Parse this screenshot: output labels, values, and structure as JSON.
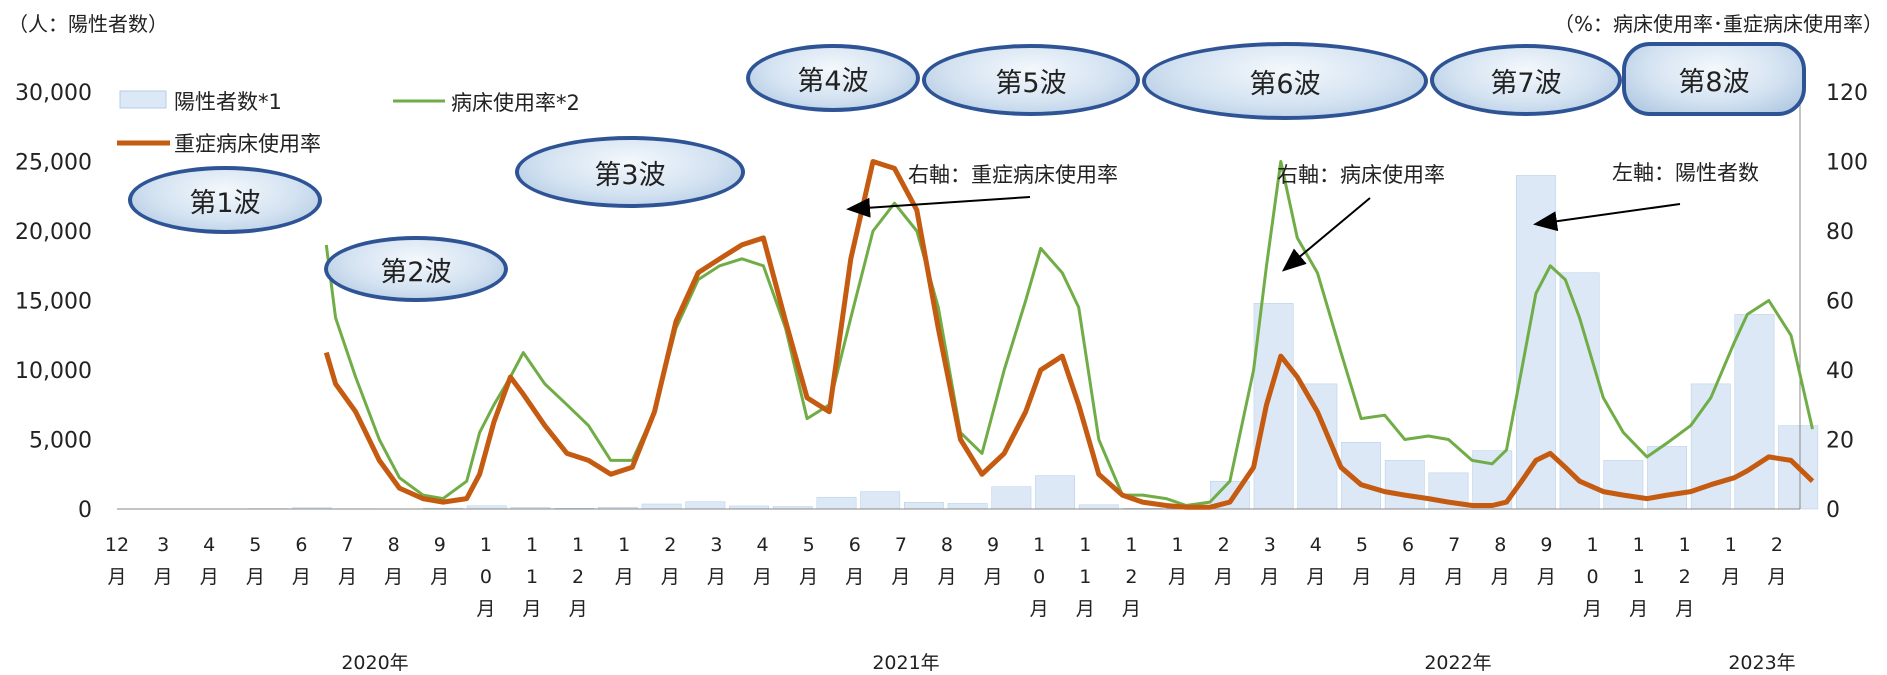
{
  "axes": {
    "left_unit": "（人：陽性者数）",
    "right_unit": "（%：病床使用率･重症病床使用率）"
  },
  "waves": [
    "第1波",
    "第2波",
    "第3波",
    "第4波",
    "第5波",
    "第6波",
    "第7波",
    "第8波"
  ],
  "chart_data": {
    "type": "line",
    "title": "",
    "x_unit": "month",
    "x_range": [
      "2019-12",
      "2023-02"
    ],
    "x_months": [
      "12\n月",
      "3\n月",
      "4\n月",
      "5\n月",
      "6\n月",
      "7\n月",
      "8\n月",
      "9\n月",
      "1\n0\n月",
      "1\n1\n月",
      "1\n2\n月",
      "1\n月",
      "2\n月",
      "3\n月",
      "4\n月",
      "5\n月",
      "6\n月",
      "7\n月",
      "8\n月",
      "9\n月",
      "1\n0\n月",
      "1\n1\n月",
      "1\n2\n月",
      "1\n月",
      "2\n月",
      "3\n月",
      "4\n月",
      "5\n月",
      "6\n月",
      "7\n月",
      "8\n月",
      "9\n月",
      "1\n0\n月",
      "1\n1\n月",
      "1\n2\n月",
      "1\n月",
      "2\n月"
    ],
    "year_labels": [
      "2020年",
      "2021年",
      "2022年",
      "2023年"
    ],
    "y_left": {
      "label": "（人：陽性者数）",
      "range": [
        0,
        30000
      ],
      "ticks": [
        "0",
        "5,000",
        "10,000",
        "15,000",
        "20,000",
        "25,000",
        "30,000"
      ]
    },
    "y_right": {
      "label": "（%：病床使用率･重症病床使用率）",
      "range": [
        0,
        120
      ],
      "ticks": [
        "0",
        "20",
        "40",
        "60",
        "80",
        "100",
        "120"
      ]
    },
    "legend": [
      "陽性者数*1",
      "病床使用率*2",
      "重症病床使用率"
    ],
    "legend_position": "top-left",
    "series": [
      {
        "name": "陽性者数*1",
        "axis": "left",
        "kind": "bar",
        "color": "#dce8f5",
        "x": [
          "2020-03",
          "2020-04",
          "2020-05",
          "2020-06",
          "2020-07",
          "2020-08",
          "2020-09",
          "2020-10",
          "2020-11",
          "2020-12",
          "2021-01",
          "2021-02",
          "2021-03",
          "2021-04",
          "2021-05",
          "2021-06",
          "2021-07",
          "2021-08",
          "2021-09",
          "2021-10",
          "2021-11",
          "2021-12",
          "2022-01",
          "2022-02",
          "2022-03",
          "2022-04",
          "2022-05",
          "2022-06",
          "2022-07",
          "2022-08",
          "2022-09",
          "2022-10",
          "2022-11",
          "2022-12",
          "2023-01",
          "2023-02"
        ],
        "values": [
          30,
          90,
          20,
          10,
          60,
          230,
          110,
          50,
          130,
          360,
          520,
          220,
          180,
          850,
          1250,
          480,
          400,
          1600,
          2400,
          300,
          50,
          60,
          2000,
          14800,
          9000,
          4800,
          3500,
          2600,
          4200,
          24000,
          17000,
          3500,
          4500,
          9000,
          14000,
          6000
        ]
      },
      {
        "name": "病床使用率*2",
        "axis": "right",
        "kind": "line",
        "color": "#70ad47",
        "x": [
          "2020-04-25",
          "2020-05-01",
          "2020-05-15",
          "2020-06-01",
          "2020-06-15",
          "2020-07-01",
          "2020-07-15",
          "2020-08-01",
          "2020-08-10",
          "2020-08-20",
          "2020-09-01",
          "2020-09-10",
          "2020-09-25",
          "2020-10-10",
          "2020-10-25",
          "2020-11-10",
          "2020-11-25",
          "2020-12-10",
          "2020-12-25",
          "2021-01-10",
          "2021-01-25",
          "2021-02-10",
          "2021-02-25",
          "2021-03-10",
          "2021-03-25",
          "2021-04-10",
          "2021-04-25",
          "2021-05-10",
          "2021-05-25",
          "2021-06-10",
          "2021-06-25",
          "2021-07-10",
          "2021-07-25",
          "2021-08-10",
          "2021-08-25",
          "2021-09-05",
          "2021-09-20",
          "2021-10-01",
          "2021-10-15",
          "2021-11-01",
          "2021-11-15",
          "2021-12-01",
          "2021-12-15",
          "2022-01-01",
          "2022-01-15",
          "2022-02-01",
          "2022-02-10",
          "2022-02-20",
          "2022-03-01",
          "2022-03-15",
          "2022-04-01",
          "2022-04-15",
          "2022-05-01",
          "2022-05-15",
          "2022-06-01",
          "2022-06-15",
          "2022-07-01",
          "2022-07-15",
          "2022-07-25",
          "2022-08-05",
          "2022-08-15",
          "2022-08-25",
          "2022-09-05",
          "2022-09-15",
          "2022-10-01",
          "2022-10-15",
          "2022-11-01",
          "2022-11-15",
          "2022-12-01",
          "2022-12-15",
          "2023-01-01",
          "2023-01-10",
          "2023-01-25",
          "2023-02-10",
          "2023-02-25"
        ],
        "values": [
          76,
          55,
          38,
          20,
          9,
          4,
          3,
          8,
          22,
          30,
          38,
          45,
          36,
          30,
          24,
          14,
          14,
          28,
          52,
          66,
          70,
          72,
          70,
          52,
          26,
          30,
          55,
          80,
          88,
          80,
          58,
          22,
          16,
          40,
          60,
          75,
          68,
          58,
          20,
          4,
          4,
          3,
          1,
          2,
          8,
          40,
          70,
          100,
          78,
          68,
          45,
          26,
          27,
          20,
          21,
          20,
          14,
          13,
          17,
          40,
          62,
          70,
          66,
          55,
          32,
          22,
          15,
          19,
          24,
          32,
          48,
          56,
          60,
          50,
          23
        ]
      },
      {
        "name": "重症病床使用率",
        "axis": "right",
        "kind": "line",
        "color": "#c55a11",
        "x": [
          "2020-04-25",
          "2020-05-01",
          "2020-05-15",
          "2020-06-01",
          "2020-06-15",
          "2020-07-01",
          "2020-07-15",
          "2020-08-01",
          "2020-08-10",
          "2020-08-20",
          "2020-09-01",
          "2020-09-10",
          "2020-09-25",
          "2020-10-10",
          "2020-10-25",
          "2020-11-10",
          "2020-11-25",
          "2020-12-10",
          "2020-12-25",
          "2021-01-10",
          "2021-01-25",
          "2021-02-10",
          "2021-02-25",
          "2021-03-10",
          "2021-03-25",
          "2021-04-10",
          "2021-04-25",
          "2021-05-10",
          "2021-05-25",
          "2021-06-10",
          "2021-06-25",
          "2021-07-10",
          "2021-07-25",
          "2021-08-10",
          "2021-08-25",
          "2021-09-05",
          "2021-09-20",
          "2021-10-01",
          "2021-10-15",
          "2021-11-01",
          "2021-11-15",
          "2021-12-01",
          "2021-12-15",
          "2022-01-01",
          "2022-01-15",
          "2022-02-01",
          "2022-02-10",
          "2022-02-20",
          "2022-03-01",
          "2022-03-15",
          "2022-04-01",
          "2022-04-15",
          "2022-05-01",
          "2022-05-15",
          "2022-06-01",
          "2022-06-15",
          "2022-07-01",
          "2022-07-15",
          "2022-07-25",
          "2022-08-05",
          "2022-08-15",
          "2022-08-25",
          "2022-09-05",
          "2022-09-15",
          "2022-10-01",
          "2022-10-15",
          "2022-11-01",
          "2022-11-15",
          "2022-12-01",
          "2022-12-15",
          "2023-01-01",
          "2023-01-10",
          "2023-01-25",
          "2023-02-10",
          "2023-02-25"
        ],
        "values": [
          45,
          36,
          28,
          14,
          6,
          3,
          2,
          3,
          10,
          25,
          38,
          33,
          24,
          16,
          14,
          10,
          12,
          28,
          54,
          68,
          72,
          76,
          78,
          54,
          32,
          28,
          72,
          100,
          98,
          86,
          52,
          20,
          10,
          16,
          28,
          40,
          44,
          30,
          10,
          4,
          2,
          1,
          0.5,
          0.5,
          2,
          12,
          30,
          44,
          38,
          28,
          12,
          7,
          5,
          4,
          3,
          2,
          1,
          1,
          2,
          8,
          14,
          16,
          12,
          8,
          5,
          4,
          3,
          4,
          5,
          7,
          9,
          11,
          15,
          14,
          8
        ]
      }
    ],
    "annotations": [
      {
        "text": "右軸：重症病床使用率",
        "points_to": "重症病床使用率"
      },
      {
        "text": "右軸：病床使用率",
        "points_to": "病床使用率*2"
      },
      {
        "text": "左軸：陽性者数",
        "points_to": "陽性者数*1"
      }
    ]
  }
}
